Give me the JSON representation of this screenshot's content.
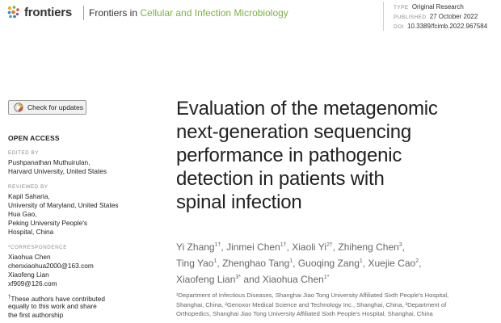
{
  "header": {
    "logo_text": "frontiers",
    "journal_prefix": "Frontiers in ",
    "journal_name": "Cellular and Infection Microbiology",
    "accent_color": "#7bb241"
  },
  "meta": {
    "type_label": "TYPE",
    "type_value": "Original Research",
    "published_label": "PUBLISHED",
    "published_value": "27 October 2022",
    "doi_label": "DOI",
    "doi_value": "10.3389/fcimb.2022.967584"
  },
  "check_updates": {
    "icon": "check-for-updates-icon",
    "label": "Check for updates"
  },
  "sidebar": {
    "open_access": "OPEN ACCESS",
    "edited_by_label": "EDITED BY",
    "editor_name": "Pushpanathan Muthuirulan,",
    "editor_affil": "Harvard University, United States",
    "reviewed_by_label": "REVIEWED BY",
    "reviewer1_name": "Kapil Saharia,",
    "reviewer1_affil": "University of Maryland, United States",
    "reviewer2_name": "Hua Gao,",
    "reviewer2_affil_line1": "Peking University People's",
    "reviewer2_affil_line2": "Hospital, China",
    "correspondence_label": "*CORRESPONDENCE",
    "corr1_name": "Xiaohua Chen",
    "corr1_email": "chenxiaohua2000@163.com",
    "corr2_name": "Xiaofeng Lian",
    "corr2_email": "xf909@126.com",
    "note_mark": "†",
    "note_line1": "These authors have contributed",
    "note_line2": "equally to this work and share",
    "note_line3": "the first authorship"
  },
  "article": {
    "title_lines": [
      "Evaluation of the metagenomic",
      "next-generation sequencing",
      "performance in pathogenic",
      "detection in patients with",
      "spinal infection"
    ],
    "authors": [
      {
        "name": "Yi Zhang",
        "sup": "1†",
        "sep": ", "
      },
      {
        "name": "Jinmei Chen",
        "sup": "1†",
        "sep": ", "
      },
      {
        "name": "Xiaoli Yi",
        "sup": "2†",
        "sep": ", "
      },
      {
        "name": "Zhiheng Chen",
        "sup": "3",
        "sep": ","
      },
      {
        "name": "Ting Yao",
        "sup": "1",
        "sep": ", "
      },
      {
        "name": "Zhenghao Tang",
        "sup": "1",
        "sep": ", "
      },
      {
        "name": "Guoqing Zang",
        "sup": "1",
        "sep": ", "
      },
      {
        "name": "Xuejie Cao",
        "sup": "2",
        "sep": ","
      },
      {
        "name": "Xiaofeng Lian",
        "sup": "3*",
        "sep": " and "
      },
      {
        "name": "Xiaohua Chen",
        "sup": "1*",
        "sep": ""
      }
    ],
    "affiliation_lines": [
      "¹Department of Infectious Diseases, Shanghai Jiao Tong University Affiliated Sixth People's Hospital,",
      "Shanghai, China, ²Genoxor Medical Science and Technology Inc., Shanghai, China, ³Department of",
      "Orthopedics, Shanghai Jiao Tong University Affiliated Sixth People's Hospital, Shanghai, China"
    ]
  }
}
